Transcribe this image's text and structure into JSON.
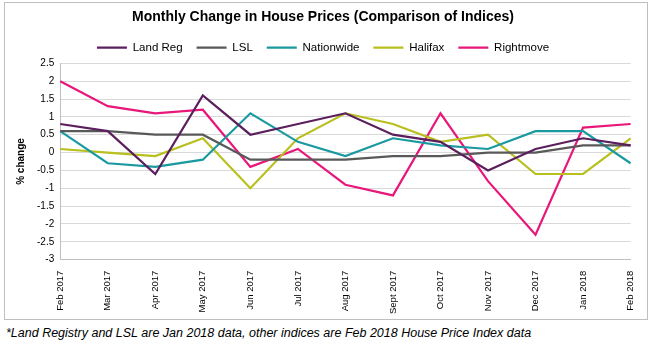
{
  "chart_data": {
    "type": "line",
    "title": "Monthly Change in House Prices (Comparison of Indices)",
    "y_label": "% change",
    "annotations": [
      "*Land Registry and LSL are Jan 2018 data, other indices are Feb 2018 House Price Index data"
    ],
    "categories": [
      "Feb 2017",
      "Mar 2017",
      "Apr 2017",
      "May 2017",
      "Jun 2017",
      "Jul 2017",
      "Aug 2017",
      "Sept 2017",
      "Oct 2017",
      "Nov 2017",
      "Dec 2017",
      "Jan 2018",
      "Feb 2018"
    ],
    "series": [
      {
        "name": "Land Reg",
        "color": "#5b1f5e",
        "values": [
          0.8,
          0.6,
          -0.6,
          1.6,
          0.5,
          0.8,
          1.1,
          0.5,
          0.3,
          -0.5,
          0.1,
          0.4,
          0.2
        ]
      },
      {
        "name": "LSL",
        "color": "#595959",
        "values": [
          0.6,
          0.6,
          0.5,
          0.5,
          -0.2,
          -0.2,
          -0.2,
          -0.1,
          -0.1,
          0.0,
          0.0,
          0.2,
          0.2
        ]
      },
      {
        "name": "Nationwide",
        "color": "#1a9aa0",
        "values": [
          0.6,
          -0.3,
          -0.4,
          -0.2,
          1.1,
          0.3,
          -0.1,
          0.4,
          0.2,
          0.1,
          0.6,
          0.6,
          -0.3
        ]
      },
      {
        "name": "Halifax",
        "color": "#b8bf1e",
        "values": [
          0.1,
          0.0,
          -0.1,
          0.4,
          -1.0,
          0.4,
          1.1,
          0.8,
          0.3,
          0.5,
          -0.6,
          -0.6,
          0.4
        ]
      },
      {
        "name": "Rightmove",
        "color": "#e8177a",
        "values": [
          2.0,
          1.3,
          1.1,
          1.2,
          -0.4,
          0.1,
          -0.9,
          -1.2,
          1.1,
          -0.8,
          -2.3,
          0.7,
          0.8
        ]
      }
    ],
    "ylim": [
      -3,
      2.5
    ],
    "yticks": [
      -3,
      -2.5,
      -2,
      -1.5,
      -1,
      -0.5,
      0,
      0.5,
      1,
      1.5,
      2,
      2.5
    ],
    "grid": true,
    "legend": "top"
  }
}
